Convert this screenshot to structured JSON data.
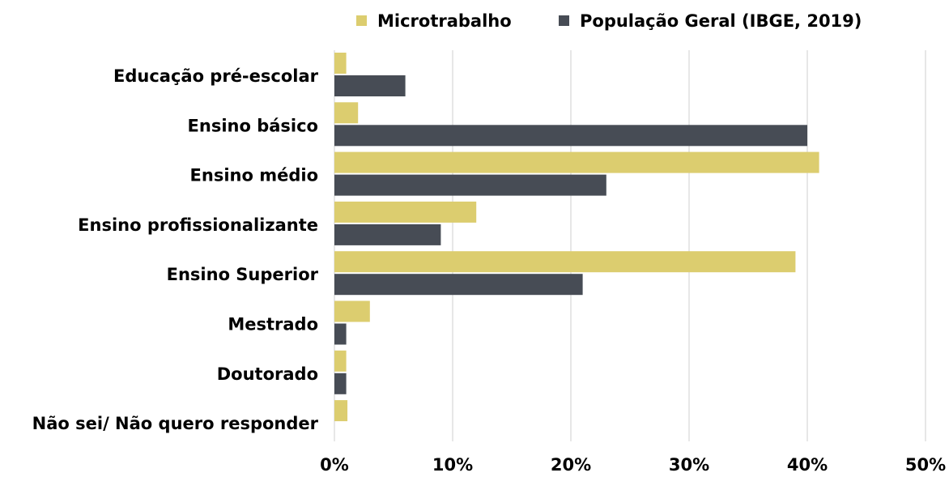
{
  "chart_data": {
    "type": "hbar",
    "categories": [
      "Educação pré-escolar",
      "Ensino básico",
      "Ensino médio",
      "Ensino profissionalizante",
      "Ensino Superior",
      "Mestrado",
      "Doutorado",
      "Não sei/ Não quero responder"
    ],
    "series": [
      {
        "name": "Microtrabalho",
        "color": "#dccd6f",
        "values": [
          1,
          2,
          41,
          12,
          39,
          3,
          1,
          1.1
        ]
      },
      {
        "name": "População Geral (IBGE, 2019)",
        "color": "#474c55",
        "values": [
          6,
          40,
          23,
          9,
          21,
          1,
          1,
          null
        ]
      }
    ],
    "xlim": [
      0,
      50
    ],
    "xticks": [
      {
        "value": 0,
        "label": "0%"
      },
      {
        "value": 10,
        "label": "10%"
      },
      {
        "value": 20,
        "label": "20%"
      },
      {
        "value": 30,
        "label": "30%"
      },
      {
        "value": 40,
        "label": "40%"
      },
      {
        "value": 50,
        "label": "50%"
      }
    ],
    "grid": true,
    "legend": "top"
  }
}
